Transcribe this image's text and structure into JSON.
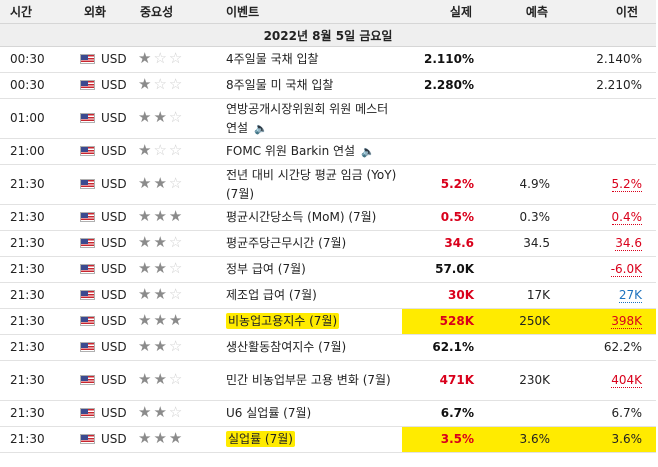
{
  "header": {
    "time": "시간",
    "currency": "외화",
    "importance": "중요성",
    "event": "이벤트",
    "actual": "실제",
    "forecast": "예측",
    "previous": "이전"
  },
  "date_label": "2022년 8월 5일 금요일",
  "rows": [
    {
      "time": "00:30",
      "currency": "USD",
      "stars": 1,
      "event": "4주일물 국채 입찰",
      "sound": false,
      "actual": "2.110%",
      "forecast": "",
      "previous": "2.140%",
      "actual_color": "dark",
      "prev_style": "plain",
      "highlight": false,
      "tall": false
    },
    {
      "time": "00:30",
      "currency": "USD",
      "stars": 1,
      "event": "8주일물 미 국채 입찰",
      "sound": false,
      "actual": "2.280%",
      "forecast": "",
      "previous": "2.210%",
      "actual_color": "dark",
      "prev_style": "plain",
      "highlight": false,
      "tall": false
    },
    {
      "time": "01:00",
      "currency": "USD",
      "stars": 2,
      "event": "연방공개시장위원회 위원 메스터 연설",
      "sound": true,
      "actual": "",
      "forecast": "",
      "previous": "",
      "actual_color": "dark",
      "prev_style": "plain",
      "highlight": false,
      "tall": true
    },
    {
      "time": "21:00",
      "currency": "USD",
      "stars": 1,
      "event": "FOMC 위원 Barkin 연설",
      "sound": true,
      "actual": "",
      "forecast": "",
      "previous": "",
      "actual_color": "dark",
      "prev_style": "plain",
      "highlight": false,
      "tall": false
    },
    {
      "time": "21:30",
      "currency": "USD",
      "stars": 2,
      "event": "전년 대비 시간당 평균 임금 (YoY) (7월)",
      "sound": false,
      "actual": "5.2%",
      "forecast": "4.9%",
      "previous": "5.2%",
      "actual_color": "red",
      "prev_style": "ul-red",
      "highlight": false,
      "tall": true
    },
    {
      "time": "21:30",
      "currency": "USD",
      "stars": 3,
      "event": "평균시간당소득 (MoM) (7월)",
      "sound": false,
      "actual": "0.5%",
      "forecast": "0.3%",
      "previous": "0.4%",
      "actual_color": "red",
      "prev_style": "ul-red",
      "highlight": false,
      "tall": false
    },
    {
      "time": "21:30",
      "currency": "USD",
      "stars": 2,
      "event": "평균주당근무시간 (7월)",
      "sound": false,
      "actual": "34.6",
      "forecast": "34.5",
      "previous": "34.6",
      "actual_color": "red",
      "prev_style": "ul-red",
      "highlight": false,
      "tall": false
    },
    {
      "time": "21:30",
      "currency": "USD",
      "stars": 2,
      "event": "정부 급여 (7월)",
      "sound": false,
      "actual": "57.0K",
      "forecast": "",
      "previous": "-6.0K",
      "actual_color": "dark",
      "prev_style": "ul-red",
      "highlight": false,
      "tall": false
    },
    {
      "time": "21:30",
      "currency": "USD",
      "stars": 2,
      "event": "제조업 급여 (7월)",
      "sound": false,
      "actual": "30K",
      "forecast": "17K",
      "previous": "27K",
      "actual_color": "red",
      "prev_style": "ul-blue",
      "highlight": false,
      "tall": false
    },
    {
      "time": "21:30",
      "currency": "USD",
      "stars": 3,
      "event": "비농업고용지수 (7월)",
      "sound": false,
      "actual": "528K",
      "forecast": "250K",
      "previous": "398K",
      "actual_color": "red",
      "prev_style": "ul-red",
      "highlight": true,
      "tall": false
    },
    {
      "time": "21:30",
      "currency": "USD",
      "stars": 2,
      "event": "생산활동참여지수 (7월)",
      "sound": false,
      "actual": "62.1%",
      "forecast": "",
      "previous": "62.2%",
      "actual_color": "dark",
      "prev_style": "plain",
      "highlight": false,
      "tall": false
    },
    {
      "time": "21:30",
      "currency": "USD",
      "stars": 2,
      "event": "민간 비농업부문 고용 변화 (7월)",
      "sound": false,
      "actual": "471K",
      "forecast": "230K",
      "previous": "404K",
      "actual_color": "red",
      "prev_style": "ul-red",
      "highlight": false,
      "tall": true
    },
    {
      "time": "21:30",
      "currency": "USD",
      "stars": 2,
      "event": "U6 실업률 (7월)",
      "sound": false,
      "actual": "6.7%",
      "forecast": "",
      "previous": "6.7%",
      "actual_color": "dark",
      "prev_style": "plain",
      "highlight": false,
      "tall": false
    },
    {
      "time": "21:30",
      "currency": "USD",
      "stars": 3,
      "event": "실업률 (7월)",
      "sound": false,
      "actual": "3.5%",
      "forecast": "3.6%",
      "previous": "3.6%",
      "actual_color": "red",
      "prev_style": "plain",
      "highlight": true,
      "tall": false
    }
  ],
  "colors": {
    "red": "#d9001b",
    "blue": "#1e73be",
    "highlight": "#ffeb00",
    "star_on": "#8b8b8b",
    "star_off": "#d0d0d0"
  }
}
